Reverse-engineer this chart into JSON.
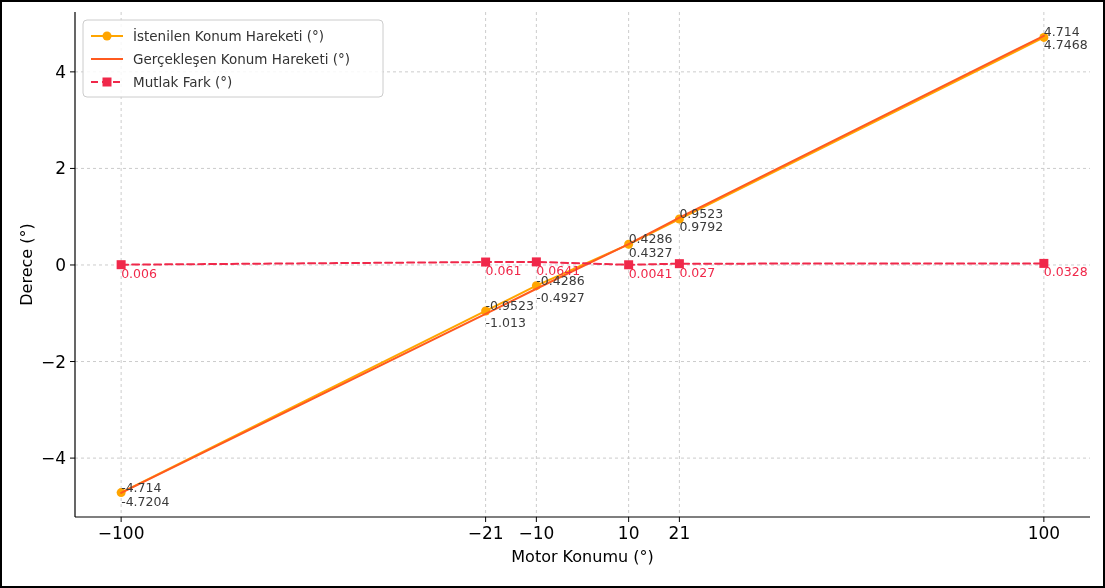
{
  "chart_data": {
    "type": "line",
    "xlabel": "Motor Konumu (°)",
    "ylabel": "Derece (°)",
    "x": [
      -100,
      -21,
      -10,
      10,
      21,
      100
    ],
    "series": [
      {
        "name": "İstenilen Konum Hareketi (°)",
        "color": "#ffa500",
        "marker": "circle",
        "line_style": "solid",
        "values": [
          -4.714,
          -0.9523,
          -0.4286,
          0.4286,
          0.9523,
          4.714
        ]
      },
      {
        "name": "Gerçekleşen Konum Hareketi (°)",
        "color": "#ff5a1f",
        "marker": "none",
        "line_style": "solid",
        "values": [
          -4.7204,
          -1.013,
          -0.4927,
          0.4327,
          0.9792,
          4.7468
        ]
      },
      {
        "name": "Mutlak Fark (°)",
        "color": "#f0284a",
        "marker": "square",
        "line_style": "dashed",
        "values": [
          0.006,
          0.061,
          0.0641,
          0.0041,
          0.027,
          0.0328
        ]
      }
    ],
    "xlim": [
      -110,
      110
    ],
    "xticks": [
      -100,
      -21,
      -10,
      10,
      21,
      100
    ],
    "ylim": [
      -5.22,
      5.24
    ],
    "yticks": [
      -4,
      -2,
      0,
      2,
      4
    ],
    "grid": true,
    "legend": "top left",
    "data_labels": true
  }
}
